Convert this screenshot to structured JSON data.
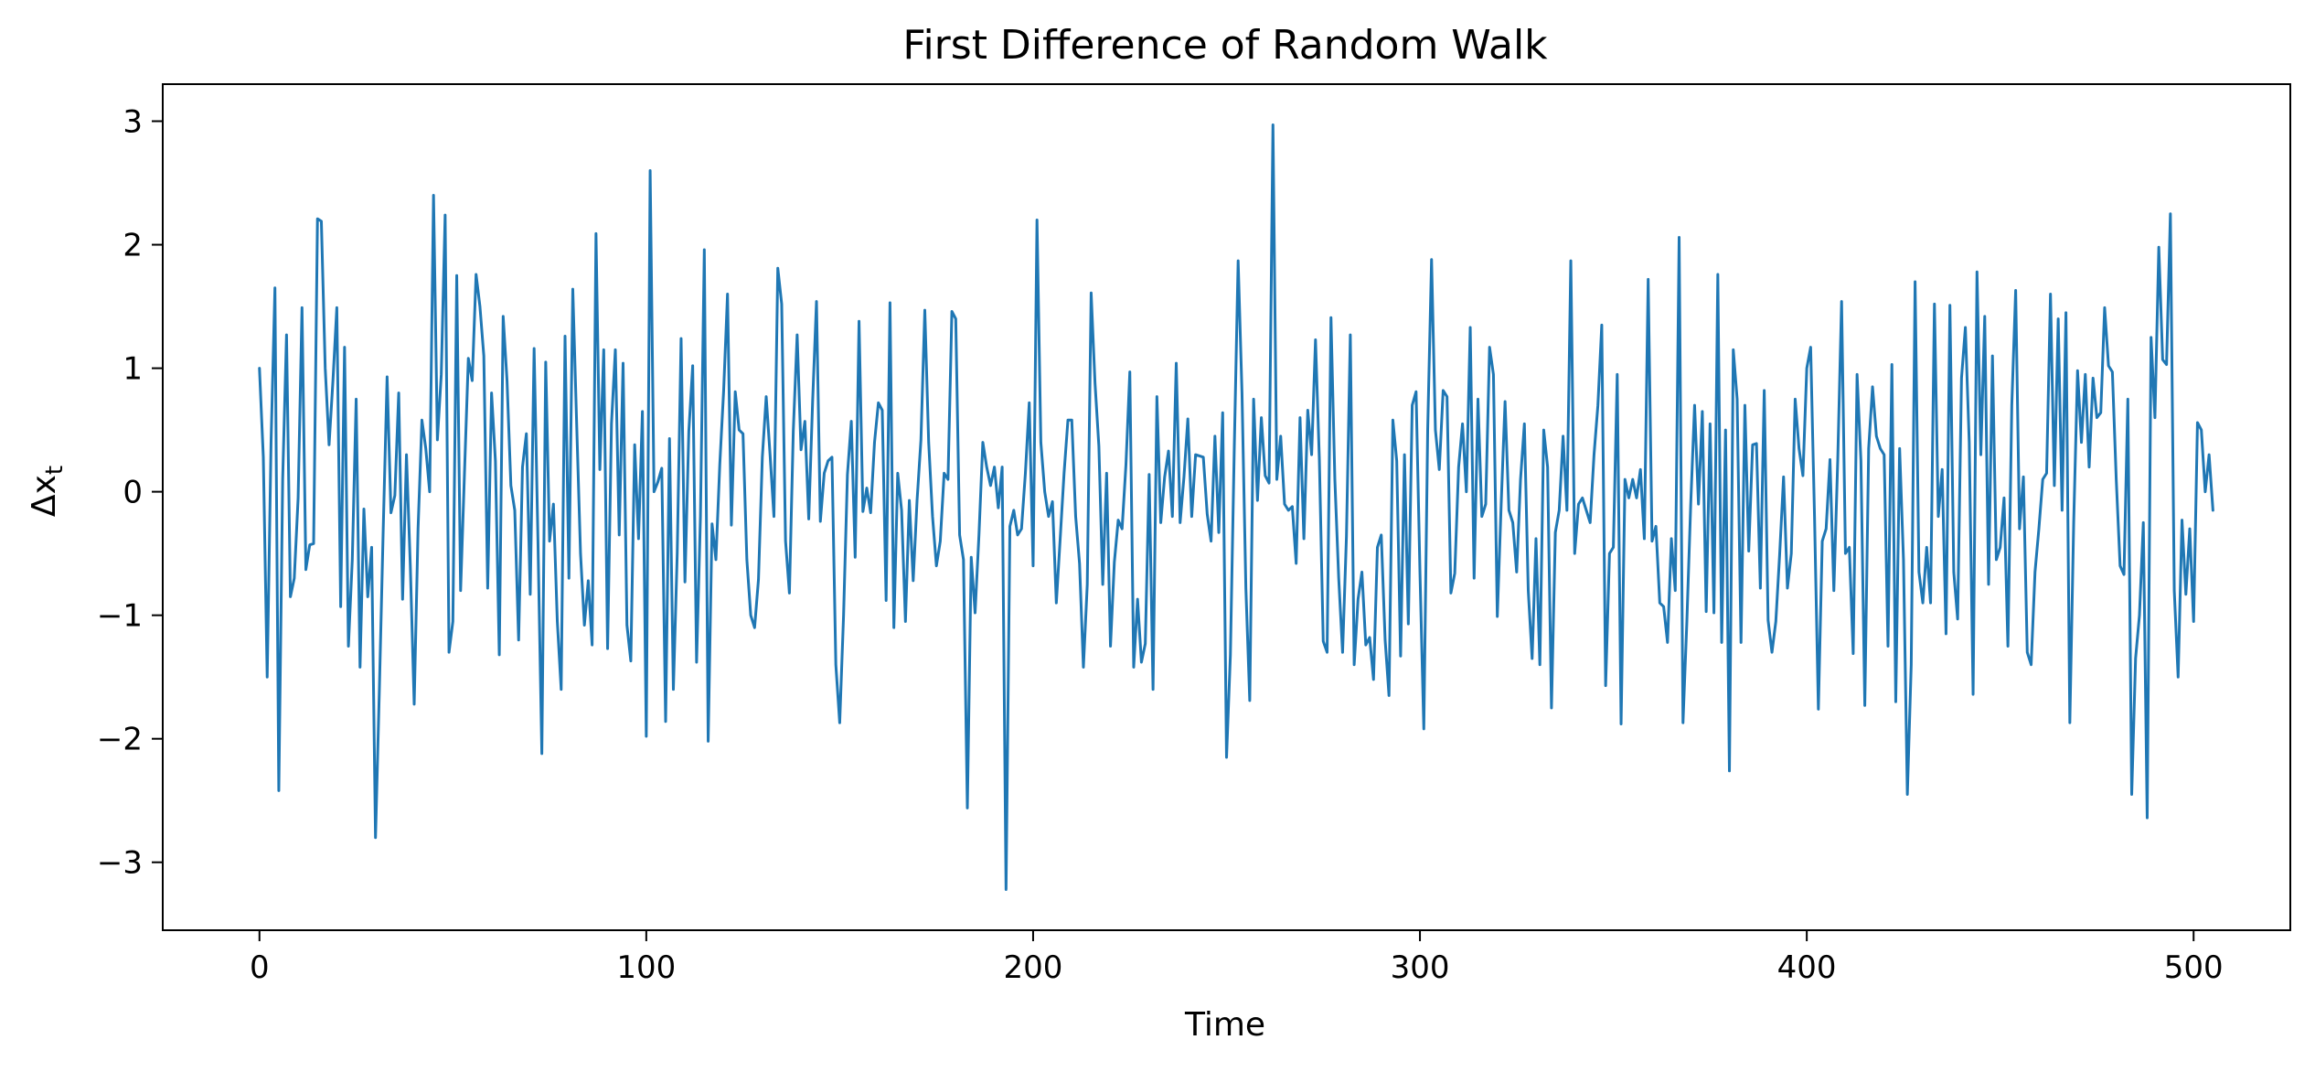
{
  "chart_data": {
    "type": "line",
    "title": "First Difference of Random Walk",
    "xlabel": "Time",
    "ylabel": {
      "base": "Δx",
      "sub": "t"
    },
    "xlim": [
      -25,
      525
    ],
    "ylim": [
      -3.55,
      3.3
    ],
    "xticks": [
      0,
      100,
      200,
      300,
      400,
      500
    ],
    "xtick_labels": [
      "0",
      "100",
      "200",
      "300",
      "400",
      "500"
    ],
    "yticks": [
      -3,
      -2,
      -1,
      0,
      1,
      2,
      3
    ],
    "ytick_labels": [
      "−3",
      "−2",
      "−1",
      "0",
      "1",
      "2",
      "3"
    ],
    "grid": false,
    "series": [
      {
        "color": "#1f77b4",
        "x_start": 0,
        "x_step": 1,
        "values": [
          1.0,
          0.28,
          -1.5,
          0.4,
          1.65,
          -2.42,
          0.1,
          1.27,
          -0.85,
          -0.7,
          -0.05,
          1.49,
          -0.63,
          -0.43,
          -0.42,
          2.21,
          2.19,
          1.0,
          0.38,
          0.9,
          1.49,
          -0.93,
          1.17,
          -1.25,
          -0.55,
          0.75,
          -1.42,
          -0.14,
          -0.85,
          -0.45,
          -2.8,
          -1.6,
          -0.3,
          0.93,
          -0.17,
          -0.03,
          0.8,
          -0.87,
          0.3,
          -0.6,
          -1.72,
          -0.3,
          0.58,
          0.35,
          0.0,
          2.4,
          0.42,
          0.95,
          2.24,
          -1.3,
          -1.05,
          1.75,
          -0.8,
          0.15,
          1.08,
          0.9,
          1.76,
          1.5,
          1.1,
          -0.78,
          0.8,
          0.25,
          -1.32,
          1.42,
          0.9,
          0.05,
          -0.15,
          -1.2,
          0.2,
          0.47,
          -0.83,
          1.16,
          -0.4,
          -2.12,
          1.05,
          -0.4,
          -0.1,
          -1.05,
          -1.6,
          1.26,
          -0.7,
          1.64,
          0.55,
          -0.5,
          -1.08,
          -0.72,
          -1.24,
          2.09,
          0.18,
          1.15,
          -1.27,
          0.55,
          1.15,
          -0.35,
          1.04,
          -1.08,
          -1.37,
          0.38,
          -0.38,
          0.65,
          -1.98,
          2.6,
          0.0,
          0.08,
          0.19,
          -1.86,
          0.43,
          -1.6,
          -0.5,
          1.24,
          -0.73,
          0.49,
          1.02,
          -1.38,
          -0.2,
          1.96,
          -2.02,
          -0.26,
          -0.55,
          0.22,
          0.82,
          1.6,
          -0.27,
          0.81,
          0.5,
          0.47,
          -0.55,
          -1.0,
          -1.1,
          -0.71,
          0.28,
          0.77,
          0.3,
          -0.2,
          1.81,
          1.52,
          -0.4,
          -0.82,
          0.49,
          1.27,
          0.34,
          0.57,
          -0.22,
          0.73,
          1.54,
          -0.24,
          0.15,
          0.25,
          0.28,
          -1.4,
          -1.87,
          -1.0,
          0.14,
          0.57,
          -0.53,
          1.38,
          -0.16,
          0.03,
          -0.17,
          0.4,
          0.72,
          0.66,
          -0.88,
          1.53,
          -1.1,
          0.15,
          -0.15,
          -1.05,
          -0.07,
          -0.72,
          -0.07,
          0.42,
          1.47,
          0.4,
          -0.2,
          -0.6,
          -0.4,
          0.15,
          0.1,
          1.46,
          1.4,
          -0.35,
          -0.55,
          -2.56,
          -0.53,
          -0.98,
          -0.35,
          0.4,
          0.2,
          0.05,
          0.2,
          -0.13,
          0.2,
          -3.22,
          -0.28,
          -0.15,
          -0.35,
          -0.3,
          0.15,
          0.72,
          -0.6,
          2.2,
          0.4,
          0.0,
          -0.2,
          -0.08,
          -0.9,
          -0.38,
          0.15,
          0.58,
          0.58,
          -0.2,
          -0.58,
          -1.42,
          -0.75,
          1.61,
          0.88,
          0.37,
          -0.75,
          0.15,
          -1.25,
          -0.57,
          -0.23,
          -0.3,
          0.22,
          0.97,
          -1.42,
          -0.87,
          -1.38,
          -1.23,
          0.14,
          -1.6,
          0.77,
          -0.25,
          0.12,
          0.33,
          -0.2,
          1.04,
          -0.25,
          0.12,
          0.59,
          -0.2,
          0.3,
          0.29,
          0.28,
          -0.18,
          -0.4,
          0.45,
          -0.33,
          0.64,
          -2.15,
          -1.32,
          0.35,
          1.87,
          0.8,
          -0.78,
          -1.69,
          0.75,
          -0.07,
          0.6,
          0.13,
          0.07,
          2.97,
          0.1,
          0.45,
          -0.1,
          -0.15,
          -0.12,
          -0.58,
          0.6,
          -0.38,
          0.66,
          0.3,
          1.23,
          0.26,
          -1.21,
          -1.3,
          1.41,
          0.1,
          -0.7,
          -1.3,
          -0.36,
          1.27,
          -1.4,
          -0.87,
          -0.65,
          -1.24,
          -1.18,
          -1.52,
          -0.45,
          -0.35,
          -1.2,
          -1.65,
          0.58,
          0.25,
          -1.33,
          0.3,
          -1.07,
          0.7,
          0.81,
          -0.65,
          -1.92,
          0.5,
          1.88,
          0.5,
          0.18,
          0.82,
          0.77,
          -0.82,
          -0.66,
          0.2,
          0.55,
          0.0,
          1.33,
          -0.7,
          0.75,
          -0.2,
          -0.1,
          1.17,
          0.95,
          -1.01,
          -0.1,
          0.73,
          -0.15,
          -0.25,
          -0.65,
          0.1,
          0.55,
          -0.8,
          -1.35,
          -0.38,
          -1.4,
          0.5,
          0.2,
          -1.75,
          -0.33,
          -0.15,
          0.45,
          -0.15,
          1.87,
          -0.5,
          -0.1,
          -0.05,
          -0.15,
          -0.25,
          0.3,
          0.7,
          1.35,
          -1.57,
          -0.5,
          -0.45,
          0.95,
          -1.88,
          0.1,
          -0.05,
          0.1,
          -0.05,
          0.18,
          -0.38,
          1.72,
          -0.4,
          -0.28,
          -0.9,
          -0.93,
          -1.22,
          -0.38,
          -0.8,
          2.06,
          -1.87,
          -1.05,
          -0.1,
          0.7,
          -0.1,
          0.65,
          -0.97,
          0.55,
          -0.98,
          1.76,
          -1.22,
          0.5,
          -2.26,
          1.15,
          0.75,
          -1.22,
          0.7,
          -0.48,
          0.38,
          0.39,
          -0.78,
          0.82,
          -1.04,
          -1.3,
          -1.05,
          -0.5,
          0.12,
          -0.78,
          -0.5,
          0.75,
          0.35,
          0.13,
          1.0,
          1.17,
          -0.2,
          -1.76,
          -0.4,
          -0.3,
          0.26,
          -0.8,
          0.25,
          1.54,
          -0.5,
          -0.45,
          -1.31,
          0.95,
          0.25,
          -1.73,
          0.35,
          0.85,
          0.45,
          0.35,
          0.3,
          -1.25,
          1.03,
          -1.7,
          0.35,
          -0.55,
          -2.45,
          -1.4,
          1.7,
          -0.65,
          -0.9,
          -0.45,
          -0.9,
          1.52,
          -0.2,
          0.18,
          -1.15,
          1.51,
          -0.65,
          -1.03,
          0.92,
          1.33,
          0.4,
          -1.64,
          1.78,
          0.3,
          1.42,
          -0.75,
          1.1,
          -0.55,
          -0.45,
          -0.05,
          -1.25,
          0.7,
          1.63,
          -0.3,
          0.12,
          -1.3,
          -1.4,
          -0.65,
          -0.3,
          0.1,
          0.15,
          1.6,
          0.05,
          1.4,
          -0.15,
          1.45,
          -1.87,
          -0.25,
          0.98,
          0.4,
          0.95,
          0.2,
          0.92,
          0.6,
          0.64,
          1.49,
          1.02,
          0.97,
          0.1,
          -0.6,
          -0.67,
          0.75,
          -2.45,
          -1.35,
          -1.0,
          -0.25,
          -2.64,
          1.25,
          0.6,
          1.98,
          1.07,
          1.03,
          2.25,
          -0.8,
          -1.5,
          -0.23,
          -0.83,
          -0.3,
          -1.05,
          0.56,
          0.5,
          0.0,
          0.3,
          -0.15
        ]
      }
    ]
  }
}
